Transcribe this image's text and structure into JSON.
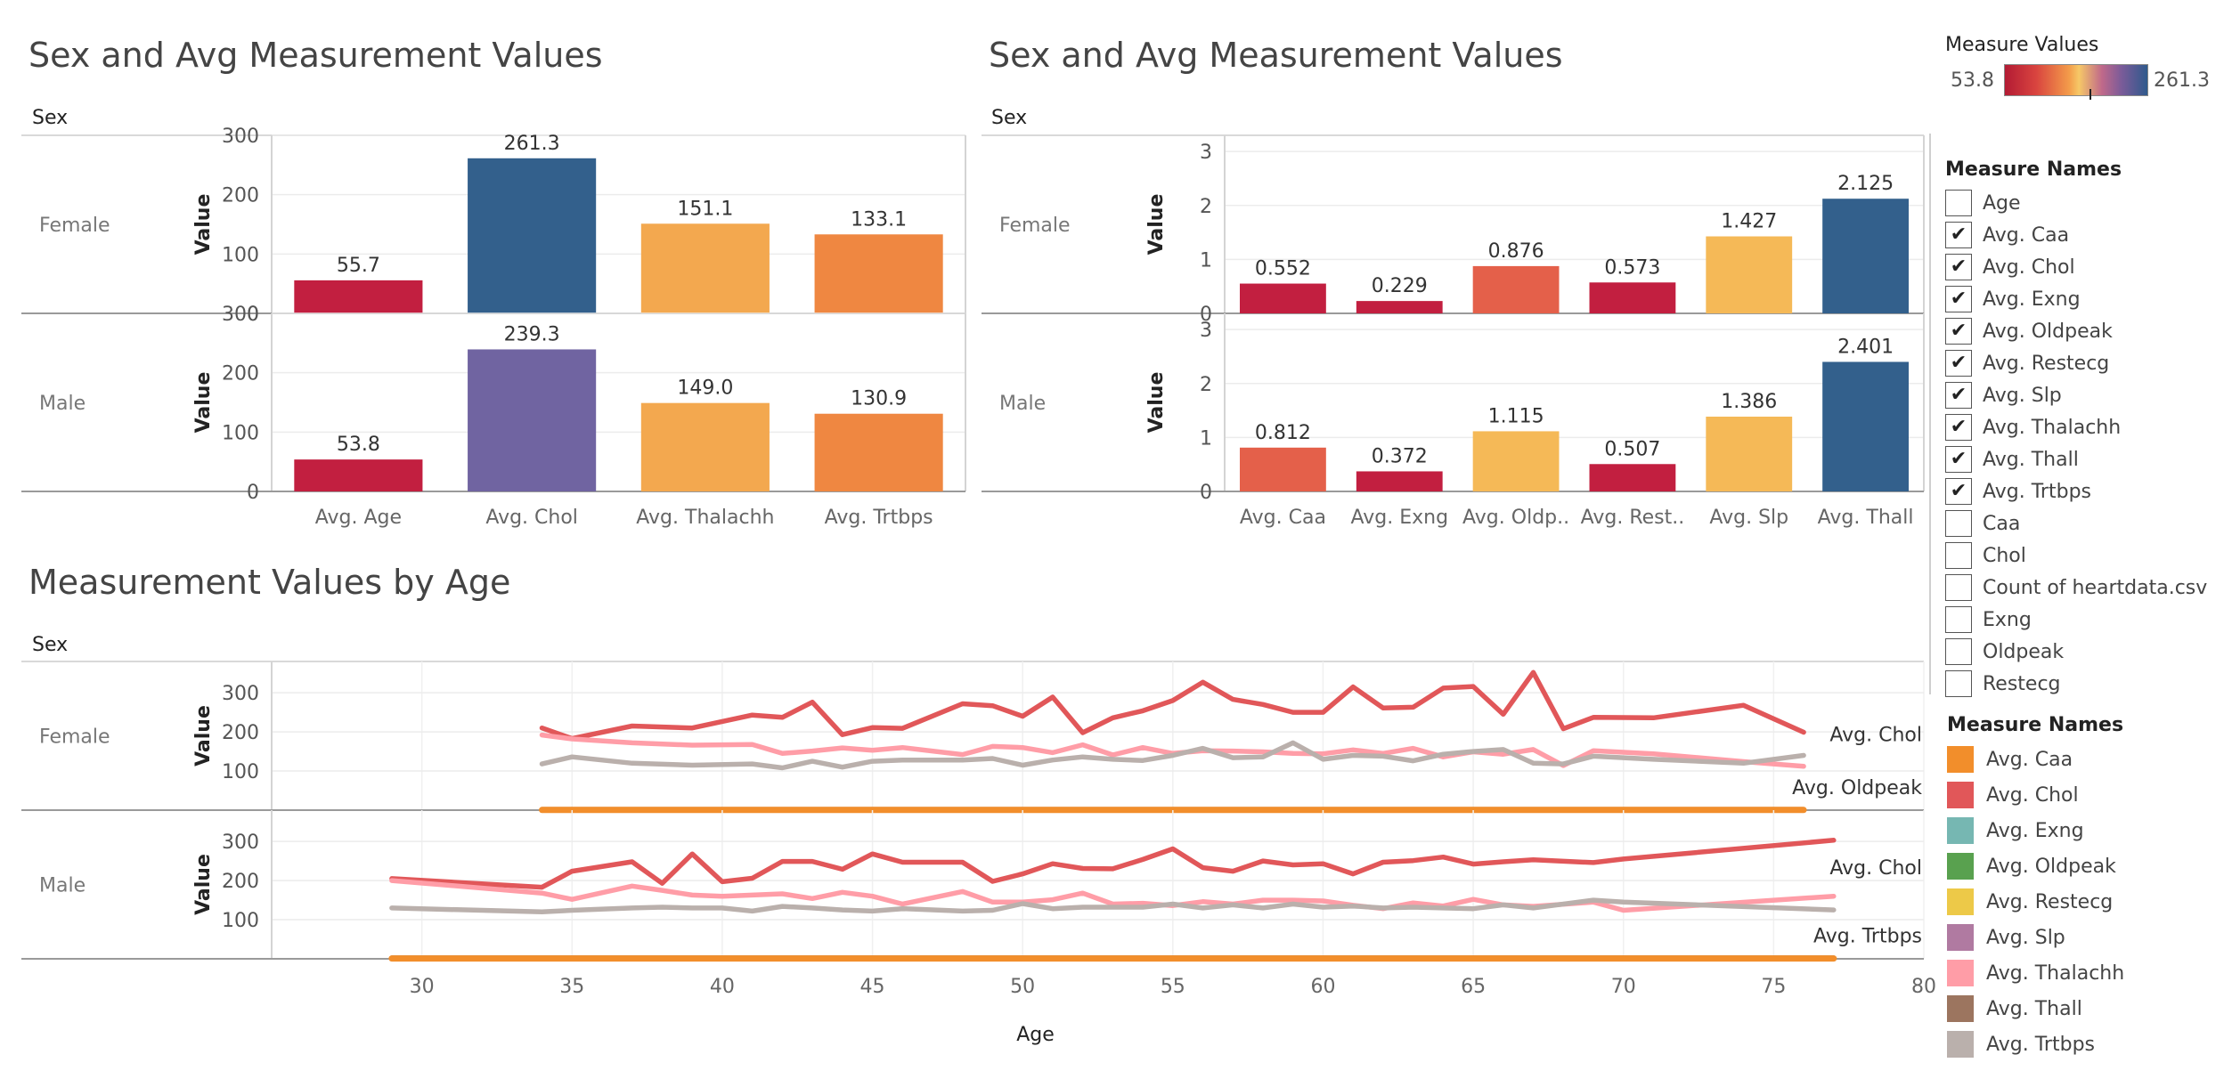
{
  "dashboard": {
    "panel1": {
      "title": "Sex and Avg Measurement Values",
      "row_header": "Sex"
    },
    "panel2": {
      "title": "Sex and Avg Measurement Values",
      "row_header": "Sex"
    },
    "panel3": {
      "title": "Measurement Values by Age",
      "row_header": "Sex"
    }
  },
  "color_legend": {
    "title": "Measure Values",
    "min_label": "53.8",
    "max_label": "261.3",
    "marker_fraction": 0.23
  },
  "filter": {
    "title": "Measure Names",
    "items": [
      {
        "label": "Age",
        "checked": false
      },
      {
        "label": "Avg. Caa",
        "checked": true
      },
      {
        "label": "Avg. Chol",
        "checked": true
      },
      {
        "label": "Avg. Exng",
        "checked": true
      },
      {
        "label": "Avg. Oldpeak",
        "checked": true
      },
      {
        "label": "Avg. Restecg",
        "checked": true
      },
      {
        "label": "Avg. Slp",
        "checked": true
      },
      {
        "label": "Avg. Thalachh",
        "checked": true
      },
      {
        "label": "Avg. Thall",
        "checked": true
      },
      {
        "label": "Avg. Trtbps",
        "checked": true
      },
      {
        "label": "Caa",
        "checked": false
      },
      {
        "label": "Chol",
        "checked": false
      },
      {
        "label": "Count of heartdata.csv",
        "checked": false
      },
      {
        "label": "Exng",
        "checked": false
      },
      {
        "label": "Oldpeak",
        "checked": false
      },
      {
        "label": "Restecg",
        "checked": false
      }
    ],
    "check_glyph": "✔"
  },
  "line_legend": {
    "title": "Measure Names",
    "items": [
      {
        "label": "Avg. Caa",
        "color": "#f28e2b"
      },
      {
        "label": "Avg. Chol",
        "color": "#e15759"
      },
      {
        "label": "Avg. Exng",
        "color": "#76b7b2"
      },
      {
        "label": "Avg. Oldpeak",
        "color": "#59a14f"
      },
      {
        "label": "Avg. Restecg",
        "color": "#edc948"
      },
      {
        "label": "Avg. Slp",
        "color": "#b07aa1"
      },
      {
        "label": "Avg. Thalachh",
        "color": "#ff9da7"
      },
      {
        "label": "Avg. Thall",
        "color": "#9c755f"
      },
      {
        "label": "Avg. Trtbps",
        "color": "#bab0ac"
      }
    ]
  },
  "chart_data": [
    {
      "type": "bar",
      "title": "Sex and Avg Measurement Values",
      "row_header": "Sex",
      "ylabel": "Value",
      "ylim": [
        0,
        300
      ],
      "yticks": [
        0,
        100,
        200,
        300
      ],
      "categories": [
        "Avg. Age",
        "Avg. Chol",
        "Avg. Thalachh",
        "Avg. Trtbps"
      ],
      "rows": [
        {
          "name": "Female",
          "values": [
            55.7,
            261.3,
            151.1,
            133.1
          ],
          "labels": [
            "55.7",
            "261.3",
            "151.1",
            "133.1"
          ],
          "colors": [
            "#c21f40",
            "#33608c",
            "#f3a84f",
            "#ef8741"
          ]
        },
        {
          "name": "Male",
          "values": [
            53.8,
            239.3,
            149.0,
            130.9
          ],
          "labels": [
            "53.8",
            "239.3",
            "149.0",
            "130.9"
          ],
          "colors": [
            "#c21f40",
            "#7064a1",
            "#f3a84f",
            "#ef8741"
          ]
        }
      ]
    },
    {
      "type": "bar",
      "title": "Sex and Avg Measurement Values",
      "row_header": "Sex",
      "ylabel": "Value",
      "ylim": [
        0,
        3.3
      ],
      "yticks": [
        0,
        1,
        2,
        3
      ],
      "categories": [
        "Avg. Caa",
        "Avg. Exng",
        "Avg. Oldp..",
        "Avg. Rest..",
        "Avg. Slp",
        "Avg. Thall"
      ],
      "rows": [
        {
          "name": "Female",
          "values": [
            0.552,
            0.229,
            0.876,
            0.573,
            1.427,
            2.125
          ],
          "labels": [
            "0.552",
            "0.229",
            "0.876",
            "0.573",
            "1.427",
            "2.125"
          ],
          "colors": [
            "#c21f40",
            "#c21f40",
            "#e4604a",
            "#c21f40",
            "#f5b957",
            "#33608c"
          ]
        },
        {
          "name": "Male",
          "values": [
            0.812,
            0.372,
            1.115,
            0.507,
            1.386,
            2.401
          ],
          "labels": [
            "0.812",
            "0.372",
            "1.115",
            "0.507",
            "1.386",
            "2.401"
          ],
          "colors": [
            "#e4604a",
            "#c21f40",
            "#f5b957",
            "#c21f40",
            "#f5b957",
            "#33608c"
          ]
        }
      ]
    },
    {
      "type": "line",
      "title": "Measurement Values by Age",
      "row_header": "Sex",
      "xlabel": "Age",
      "ylabel": "Value",
      "xlim": [
        25,
        80
      ],
      "xticks": [
        30,
        35,
        40,
        45,
        50,
        55,
        60,
        65,
        70,
        75,
        80
      ],
      "ylim": [
        0,
        380
      ],
      "yticks": [
        100,
        200,
        300
      ],
      "rows": [
        {
          "name": "Female",
          "series": [
            {
              "name": "Avg. Chol",
              "color": "#e15759",
              "label": "Avg. Chol",
              "x": [
                34,
                35,
                37,
                39,
                41,
                42,
                43,
                44,
                45,
                46,
                48,
                49,
                50,
                51,
                52,
                53,
                54,
                55,
                56,
                57,
                58,
                59,
                60,
                61,
                62,
                63,
                64,
                65,
                66,
                67,
                68,
                69,
                71,
                74,
                76
              ],
              "y": [
                210,
                183,
                215,
                210,
                243,
                237,
                276,
                193,
                211,
                209,
                272,
                267,
                240,
                289,
                198,
                236,
                254,
                280,
                327,
                283,
                270,
                250,
                250,
                315,
                261,
                263,
                312,
                316,
                245,
                352,
                208,
                237,
                236,
                268,
                199
              ]
            },
            {
              "name": "Avg. Thalachh",
              "color": "#ff9da7",
              "label": "",
              "x": [
                34,
                35,
                37,
                39,
                41,
                42,
                43,
                44,
                45,
                46,
                48,
                49,
                50,
                51,
                52,
                53,
                54,
                55,
                56,
                57,
                58,
                59,
                60,
                61,
                62,
                63,
                64,
                65,
                66,
                67,
                68,
                69,
                71,
                74,
                76
              ],
              "y": [
                192,
                182,
                172,
                166,
                168,
                145,
                151,
                159,
                153,
                160,
                142,
                163,
                160,
                147,
                167,
                141,
                160,
                145,
                152,
                151,
                149,
                145,
                144,
                154,
                145,
                158,
                136,
                149,
                143,
                155,
                114,
                152,
                144,
                124,
                112
              ]
            },
            {
              "name": "Avg. Trtbps",
              "color": "#bab0ac",
              "label": "",
              "x": [
                34,
                35,
                37,
                39,
                41,
                42,
                43,
                44,
                45,
                46,
                48,
                49,
                50,
                51,
                52,
                53,
                54,
                55,
                56,
                57,
                58,
                59,
                60,
                61,
                62,
                63,
                64,
                65,
                66,
                67,
                68,
                69,
                71,
                74,
                76
              ],
              "y": [
                118,
                136,
                120,
                115,
                118,
                108,
                125,
                110,
                125,
                128,
                128,
                132,
                115,
                128,
                136,
                130,
                127,
                140,
                158,
                134,
                136,
                172,
                130,
                140,
                138,
                126,
                143,
                150,
                155,
                120,
                118,
                138,
                130,
                120,
                140
              ]
            },
            {
              "name": "Avg. Caa",
              "color": "#f28e2b",
              "label": "Avg. Oldpeak",
              "x": [
                34,
                76
              ],
              "y": [
                0.55,
                0.55
              ]
            },
            {
              "name": "Avg. Oldpeak",
              "color": "#59a14f",
              "label": "",
              "x": [
                34,
                76
              ],
              "y": [
                0.9,
                0.9
              ]
            },
            {
              "name": "Avg. Exng",
              "color": "#76b7b2",
              "label": "",
              "x": [
                34,
                76
              ],
              "y": [
                0.23,
                0.23
              ]
            },
            {
              "name": "Avg. Restecg",
              "color": "#edc948",
              "label": "",
              "x": [
                34,
                76
              ],
              "y": [
                0.57,
                0.57
              ]
            },
            {
              "name": "Avg. Slp",
              "color": "#b07aa1",
              "label": "",
              "x": [
                34,
                76
              ],
              "y": [
                1.43,
                1.43
              ]
            },
            {
              "name": "Avg. Thall",
              "color": "#9c755f",
              "label": "",
              "x": [
                34,
                76
              ],
              "y": [
                2.13,
                2.13
              ]
            }
          ]
        },
        {
          "name": "Male",
          "series": [
            {
              "name": "Avg. Chol",
              "color": "#e15759",
              "label": "Avg. Chol",
              "x": [
                29,
                34,
                35,
                37,
                38,
                39,
                40,
                41,
                42,
                43,
                44,
                45,
                46,
                48,
                49,
                50,
                51,
                52,
                53,
                54,
                55,
                56,
                57,
                58,
                59,
                60,
                61,
                62,
                63,
                64,
                65,
                66,
                67,
                69,
                70,
                77
              ],
              "y": [
                205,
                183,
                224,
                248,
                193,
                268,
                197,
                206,
                249,
                249,
                229,
                268,
                247,
                247,
                198,
                217,
                243,
                231,
                230,
                254,
                281,
                233,
                224,
                250,
                240,
                243,
                217,
                247,
                251,
                260,
                242,
                248,
                253,
                246,
                255,
                303
              ]
            },
            {
              "name": "Avg. Thalachh",
              "color": "#ff9da7",
              "label": "",
              "x": [
                29,
                34,
                35,
                37,
                38,
                39,
                40,
                41,
                42,
                43,
                44,
                45,
                46,
                48,
                49,
                50,
                51,
                52,
                53,
                54,
                55,
                56,
                57,
                58,
                59,
                60,
                61,
                62,
                63,
                64,
                65,
                66,
                67,
                69,
                70,
                77
              ],
              "y": [
                200,
                168,
                152,
                186,
                175,
                163,
                160,
                163,
                166,
                154,
                170,
                160,
                140,
                172,
                145,
                145,
                151,
                168,
                140,
                142,
                136,
                146,
                140,
                150,
                150,
                148,
                137,
                128,
                143,
                135,
                152,
                138,
                134,
                145,
                124,
                160
              ]
            },
            {
              "name": "Avg. Trtbps",
              "color": "#bab0ac",
              "label": "",
              "x": [
                29,
                34,
                35,
                37,
                38,
                39,
                40,
                41,
                42,
                43,
                44,
                45,
                46,
                48,
                49,
                50,
                51,
                52,
                53,
                54,
                55,
                56,
                57,
                58,
                59,
                60,
                61,
                62,
                63,
                64,
                65,
                66,
                67,
                69,
                70,
                77
              ],
              "y": [
                130,
                120,
                124,
                130,
                132,
                130,
                130,
                122,
                134,
                130,
                125,
                122,
                128,
                122,
                124,
                141,
                128,
                132,
                132,
                132,
                140,
                130,
                138,
                130,
                140,
                132,
                135,
                130,
                132,
                130,
                128,
                138,
                130,
                150,
                145,
                125
              ]
            },
            {
              "name": "Avg. Caa",
              "color": "#f28e2b",
              "label": "Avg. Trtbps",
              "x": [
                29,
                77
              ],
              "y": [
                0.81,
                0.81
              ]
            },
            {
              "name": "Avg. Oldpeak",
              "color": "#59a14f",
              "label": "",
              "x": [
                29,
                77
              ],
              "y": [
                1.1,
                1.1
              ]
            },
            {
              "name": "Avg. Exng",
              "color": "#76b7b2",
              "label": "",
              "x": [
                29,
                77
              ],
              "y": [
                0.37,
                0.37
              ]
            },
            {
              "name": "Avg. Restecg",
              "color": "#edc948",
              "label": "",
              "x": [
                29,
                77
              ],
              "y": [
                0.51,
                0.51
              ]
            },
            {
              "name": "Avg. Slp",
              "color": "#b07aa1",
              "label": "",
              "x": [
                29,
                77
              ],
              "y": [
                1.39,
                1.39
              ]
            },
            {
              "name": "Avg. Thall",
              "color": "#9c755f",
              "label": "",
              "x": [
                29,
                77
              ],
              "y": [
                2.4,
                2.4
              ]
            }
          ]
        }
      ]
    }
  ]
}
